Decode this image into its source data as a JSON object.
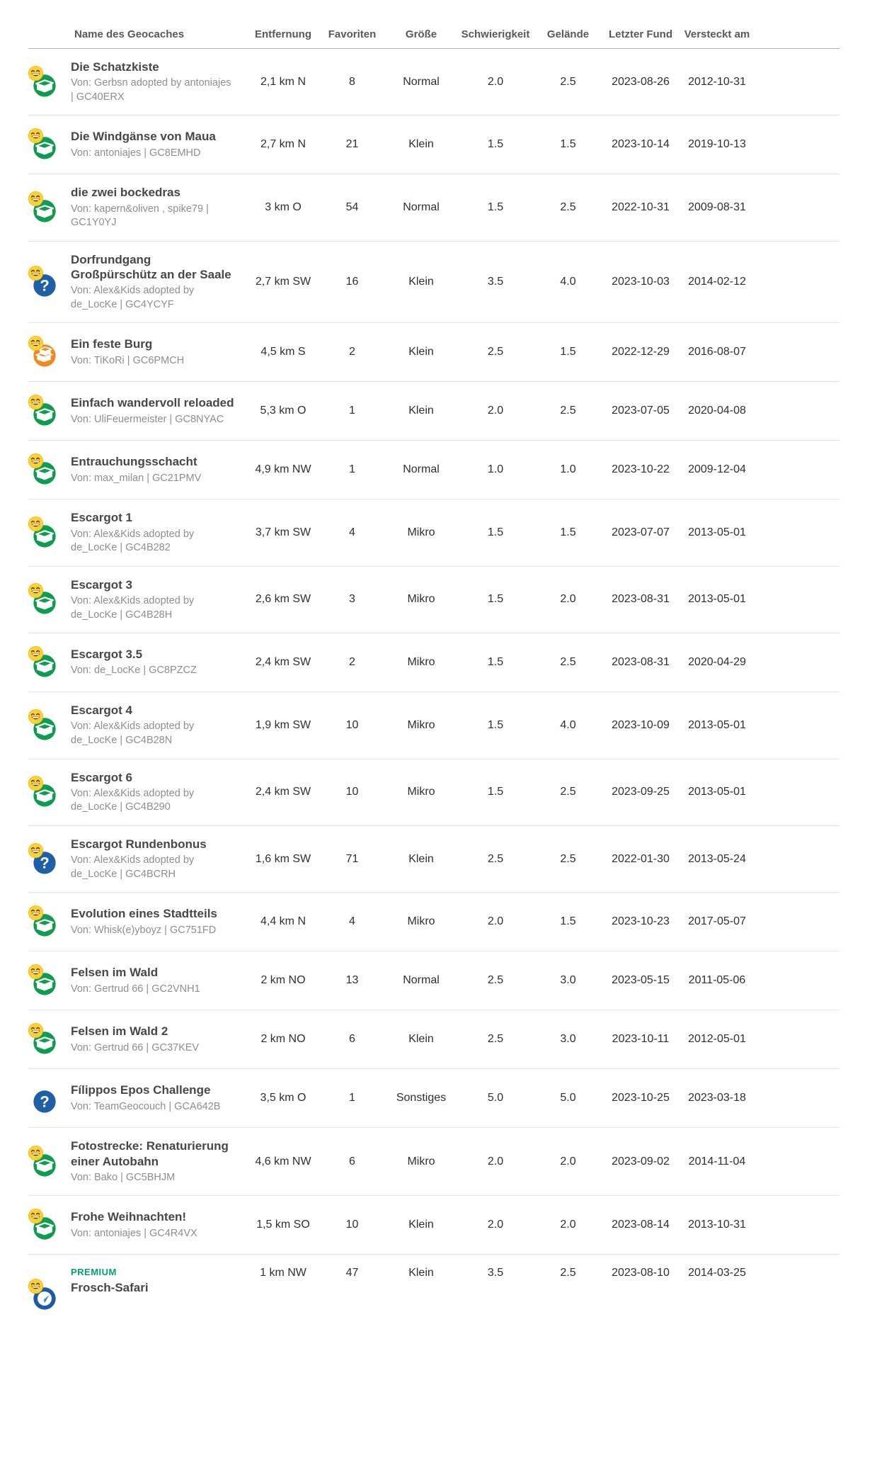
{
  "table": {
    "premium_label": "PREMIUM",
    "columns": [
      "Name des Geocaches",
      "Entfernung",
      "Favoriten",
      "Größe",
      "Schwierigkeit",
      "Gelände",
      "Letzter Fund",
      "Versteckt am"
    ],
    "rows": [
      {
        "icon": "traditional-cache",
        "found": true,
        "premium": false,
        "name": "Die Schatzkiste",
        "byline": "Von: Gerbsn adopted by antoniajes | GC40ERX",
        "distance": "2,1 km N",
        "favorites": "8",
        "size": "Normal",
        "difficulty": "2.0",
        "terrain": "2.5",
        "last_found": "2023-08-26",
        "hidden": "2012-10-31"
      },
      {
        "icon": "traditional-cache",
        "found": true,
        "premium": false,
        "name": "Die Windgänse von Maua",
        "byline": "Von: antoniajes | GC8EMHD",
        "distance": "2,7 km N",
        "favorites": "21",
        "size": "Klein",
        "difficulty": "1.5",
        "terrain": "1.5",
        "last_found": "2023-10-14",
        "hidden": "2019-10-13"
      },
      {
        "icon": "traditional-cache",
        "found": true,
        "premium": false,
        "name": "die zwei bockedras",
        "byline": "Von: kapern&oliven , spike79 | GC1Y0YJ",
        "distance": "3 km O",
        "favorites": "54",
        "size": "Normal",
        "difficulty": "1.5",
        "terrain": "2.5",
        "last_found": "2022-10-31",
        "hidden": "2009-08-31"
      },
      {
        "icon": "mystery-cache",
        "found": true,
        "premium": false,
        "name": "Dorfrundgang Großpürschütz an der Saale",
        "byline": "Von: Alex&Kids adopted by de_LocKe | GC4YCYF",
        "distance": "2,7 km SW",
        "favorites": "16",
        "size": "Klein",
        "difficulty": "3.5",
        "terrain": "4.0",
        "last_found": "2023-10-03",
        "hidden": "2014-02-12"
      },
      {
        "icon": "multi-cache",
        "found": true,
        "premium": false,
        "name": "Ein feste Burg",
        "byline": "Von: TiKoRi | GC6PMCH",
        "distance": "4,5 km S",
        "favorites": "2",
        "size": "Klein",
        "difficulty": "2.5",
        "terrain": "1.5",
        "last_found": "2022-12-29",
        "hidden": "2016-08-07"
      },
      {
        "icon": "traditional-cache",
        "found": true,
        "premium": false,
        "name": "Einfach wandervoll reloaded",
        "byline": "Von: UliFeuermeister | GC8NYAC",
        "distance": "5,3 km O",
        "favorites": "1",
        "size": "Klein",
        "difficulty": "2.0",
        "terrain": "2.5",
        "last_found": "2023-07-05",
        "hidden": "2020-04-08"
      },
      {
        "icon": "traditional-cache",
        "found": true,
        "premium": false,
        "name": "Entrauchungsschacht",
        "byline": "Von: max_milan | GC21PMV",
        "distance": "4,9 km NW",
        "favorites": "1",
        "size": "Normal",
        "difficulty": "1.0",
        "terrain": "1.0",
        "last_found": "2023-10-22",
        "hidden": "2009-12-04"
      },
      {
        "icon": "traditional-cache",
        "found": true,
        "premium": false,
        "name": "Escargot 1",
        "byline": "Von: Alex&Kids adopted by de_LocKe | GC4B282",
        "distance": "3,7 km SW",
        "favorites": "4",
        "size": "Mikro",
        "difficulty": "1.5",
        "terrain": "1.5",
        "last_found": "2023-07-07",
        "hidden": "2013-05-01"
      },
      {
        "icon": "traditional-cache",
        "found": true,
        "premium": false,
        "name": "Escargot 3",
        "byline": "Von: Alex&Kids adopted by de_LocKe | GC4B28H",
        "distance": "2,6 km SW",
        "favorites": "3",
        "size": "Mikro",
        "difficulty": "1.5",
        "terrain": "2.0",
        "last_found": "2023-08-31",
        "hidden": "2013-05-01"
      },
      {
        "icon": "traditional-cache",
        "found": true,
        "premium": false,
        "name": "Escargot 3.5",
        "byline": "Von: de_LocKe | GC8PZCZ",
        "distance": "2,4 km SW",
        "favorites": "2",
        "size": "Mikro",
        "difficulty": "1.5",
        "terrain": "2.5",
        "last_found": "2023-08-31",
        "hidden": "2020-04-29"
      },
      {
        "icon": "traditional-cache",
        "found": true,
        "premium": false,
        "name": "Escargot 4",
        "byline": "Von: Alex&Kids adopted by de_LocKe | GC4B28N",
        "distance": "1,9 km SW",
        "favorites": "10",
        "size": "Mikro",
        "difficulty": "1.5",
        "terrain": "4.0",
        "last_found": "2023-10-09",
        "hidden": "2013-05-01"
      },
      {
        "icon": "traditional-cache",
        "found": true,
        "premium": false,
        "name": "Escargot 6",
        "byline": "Von: Alex&Kids adopted by de_LocKe | GC4B290",
        "distance": "2,4 km SW",
        "favorites": "10",
        "size": "Mikro",
        "difficulty": "1.5",
        "terrain": "2.5",
        "last_found": "2023-09-25",
        "hidden": "2013-05-01"
      },
      {
        "icon": "mystery-cache",
        "found": true,
        "premium": false,
        "name": "Escargot Rundenbonus",
        "byline": "Von: Alex&Kids adopted by de_LocKe | GC4BCRH",
        "distance": "1,6 km SW",
        "favorites": "71",
        "size": "Klein",
        "difficulty": "2.5",
        "terrain": "2.5",
        "last_found": "2022-01-30",
        "hidden": "2013-05-24"
      },
      {
        "icon": "traditional-cache",
        "found": true,
        "premium": false,
        "name": "Evolution eines Stadtteils",
        "byline": "Von: Whisk(e)yboyz | GC751FD",
        "distance": "4,4 km N",
        "favorites": "4",
        "size": "Mikro",
        "difficulty": "2.0",
        "terrain": "1.5",
        "last_found": "2023-10-23",
        "hidden": "2017-05-07"
      },
      {
        "icon": "traditional-cache",
        "found": true,
        "premium": false,
        "name": "Felsen im Wald",
        "byline": "Von: Gertrud 66 | GC2VNH1",
        "distance": "2 km NO",
        "favorites": "13",
        "size": "Normal",
        "difficulty": "2.5",
        "terrain": "3.0",
        "last_found": "2023-05-15",
        "hidden": "2011-05-06"
      },
      {
        "icon": "traditional-cache",
        "found": true,
        "premium": false,
        "name": "Felsen im Wald 2",
        "byline": "Von: Gertrud 66 | GC37KEV",
        "distance": "2 km NO",
        "favorites": "6",
        "size": "Klein",
        "difficulty": "2.5",
        "terrain": "3.0",
        "last_found": "2023-10-11",
        "hidden": "2012-05-01"
      },
      {
        "icon": "mystery-cache",
        "found": false,
        "premium": false,
        "name": "Fílippos Epos Challenge",
        "byline": "Von: TeamGeocouch | GCA642B",
        "distance": "3,5 km O",
        "favorites": "1",
        "size": "Sonstiges",
        "difficulty": "5.0",
        "terrain": "5.0",
        "last_found": "2023-10-25",
        "hidden": "2023-03-18"
      },
      {
        "icon": "traditional-cache",
        "found": true,
        "premium": false,
        "name": "Fotostrecke: Renaturierung einer Autobahn",
        "byline": "Von: Bako | GC5BHJM",
        "distance": "4,6 km NW",
        "favorites": "6",
        "size": "Mikro",
        "difficulty": "2.0",
        "terrain": "2.0",
        "last_found": "2023-09-02",
        "hidden": "2014-11-04"
      },
      {
        "icon": "traditional-cache",
        "found": true,
        "premium": false,
        "name": "Frohe Weihnachten!",
        "byline": "Von: antoniajes | GC4R4VX",
        "distance": "1,5 km SO",
        "favorites": "10",
        "size": "Klein",
        "difficulty": "2.0",
        "terrain": "2.0",
        "last_found": "2023-08-14",
        "hidden": "2013-10-31"
      },
      {
        "icon": "wherigo-cache",
        "found": true,
        "premium": true,
        "name": "Frosch-Safari",
        "byline": "",
        "distance": "1 km NW",
        "favorites": "47",
        "size": "Klein",
        "difficulty": "3.5",
        "terrain": "2.5",
        "last_found": "2023-08-10",
        "hidden": "2014-03-25"
      }
    ]
  },
  "colors": {
    "traditional_green": "#0E9D4F",
    "mystery_blue": "#1E5FA9",
    "multi_orange": "#EE8C21",
    "wherigo_blue": "#1D5BA6",
    "wherigo_arrow_blue": "#3F87CF",
    "found_smiley_yellow": "#FFD231",
    "premium_green": "#02A368",
    "title_text": "#474747",
    "byline_text": "#8E8E8E",
    "header_text": "#595959",
    "row_divider": "#E5E5E5"
  }
}
